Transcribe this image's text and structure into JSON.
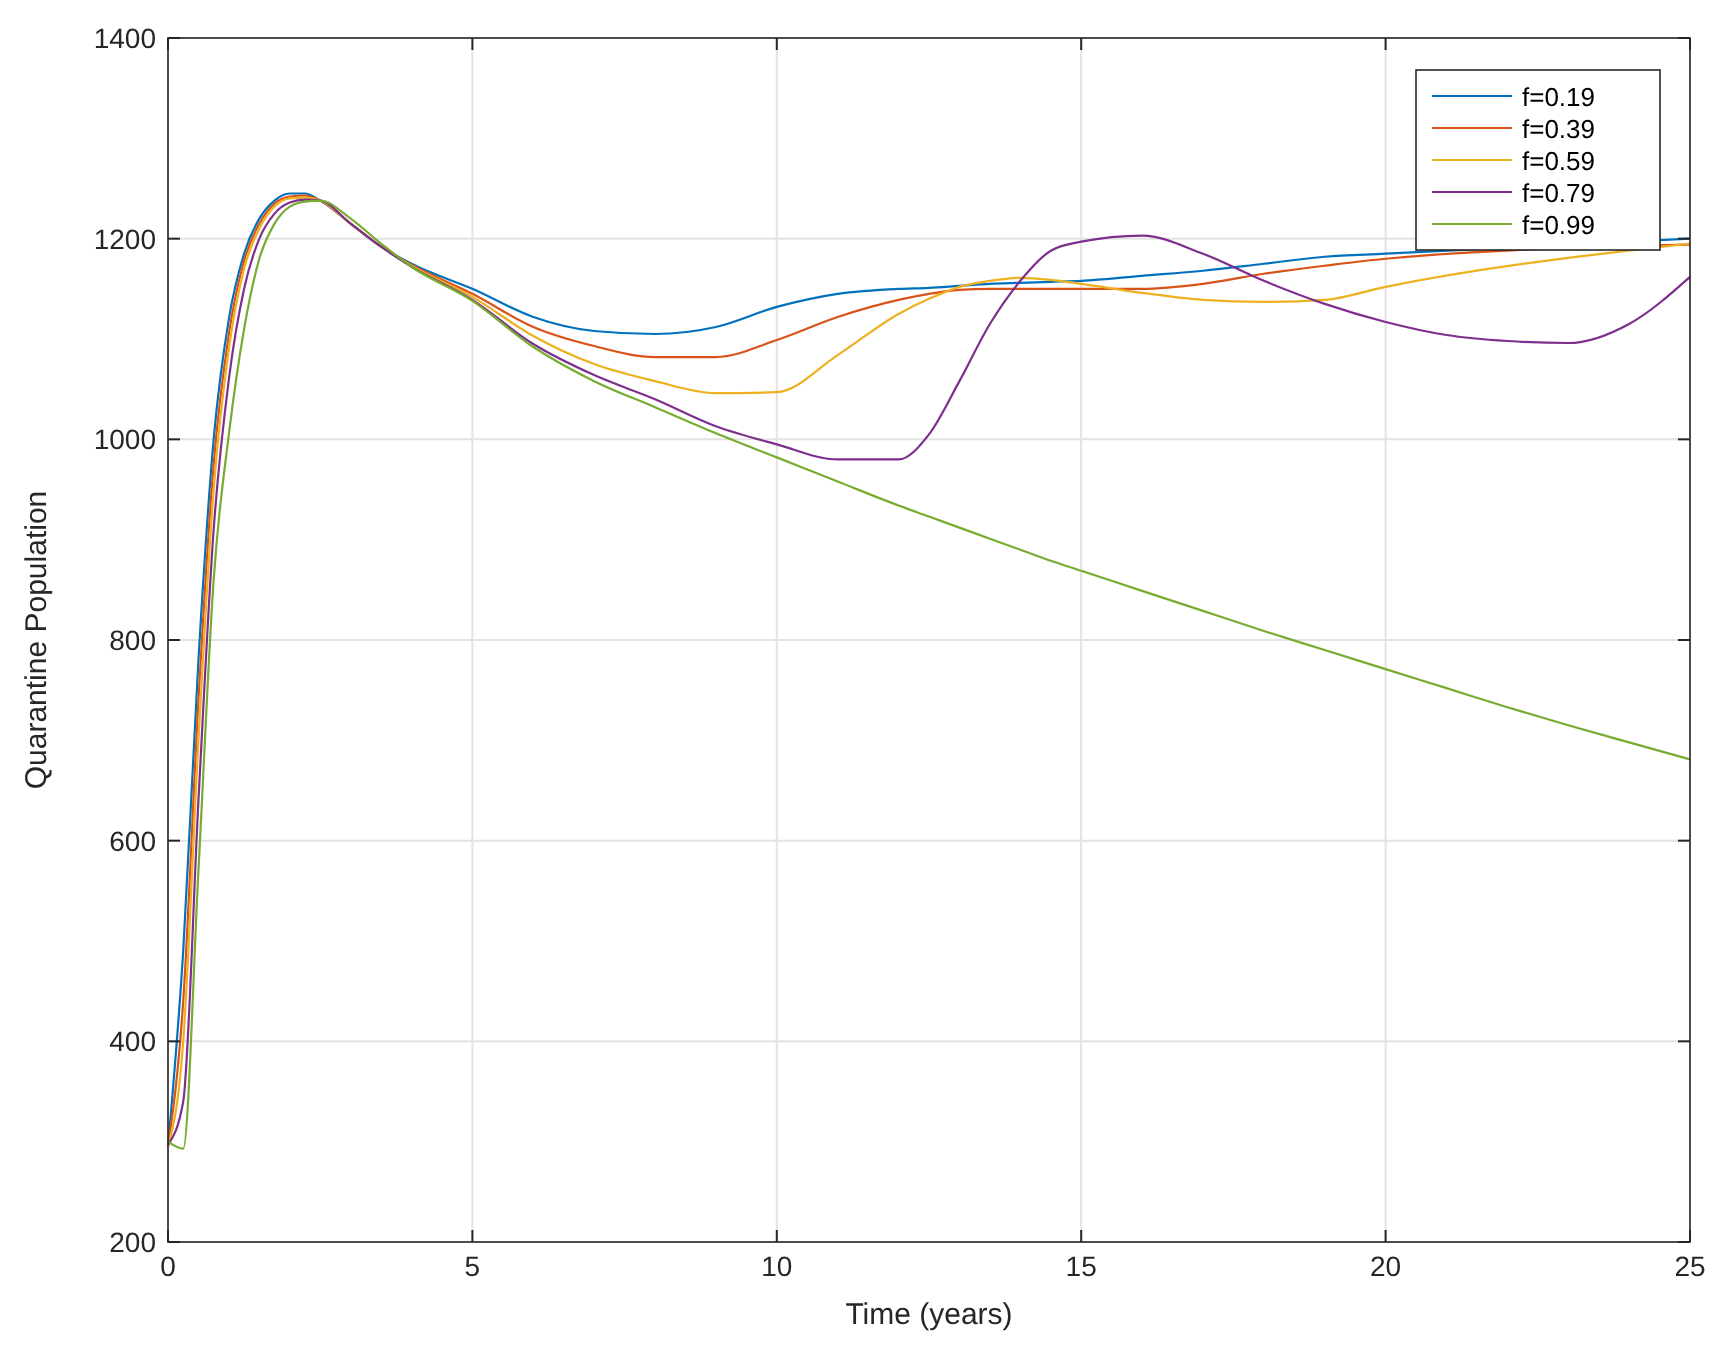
{
  "chart_data": {
    "type": "line",
    "xlabel": "Time (years)",
    "ylabel": "Quarantine Population",
    "x": [
      0,
      0.25,
      0.5,
      0.75,
      1,
      1.25,
      1.5,
      1.75,
      2,
      2.25,
      2.5,
      3,
      3.5,
      4,
      5,
      6,
      7,
      8,
      9,
      10,
      11,
      12,
      12.5,
      13,
      13.5,
      14,
      14.5,
      15,
      16,
      17,
      18,
      19,
      20,
      21,
      22,
      23,
      24,
      25
    ],
    "series": [
      {
        "name": "f=0.19",
        "color": "#0072bd",
        "x": [
          0,
          0.25,
          0.5,
          0.75,
          1,
          1.25,
          1.5,
          1.75,
          2,
          2.25,
          2.5,
          3,
          3.5,
          4,
          5,
          6,
          7,
          8,
          9,
          10,
          11,
          12,
          12.5,
          13,
          13.5,
          14,
          14.5,
          15,
          16,
          17,
          18,
          19,
          20,
          25
        ],
        "values": [
          295,
          490,
          780,
          1000,
          1120,
          1185,
          1220,
          1238,
          1245,
          1245,
          1238,
          1215,
          1192,
          1175,
          1150,
          1122,
          1108,
          1105,
          1112,
          1132,
          1145,
          1150,
          1151,
          1153,
          1155,
          1156,
          1157,
          1158,
          1163,
          1168,
          1175,
          1182,
          1185,
          1200
        ]
      },
      {
        "name": "f=0.39",
        "color": "#d95319",
        "x": [
          0,
          0.25,
          0.5,
          0.75,
          1,
          1.25,
          1.5,
          1.75,
          2,
          2.25,
          2.5,
          3,
          3.5,
          4,
          5,
          6,
          7,
          8,
          9,
          10,
          11,
          12,
          12.5,
          13,
          13.5,
          14,
          14.5,
          15,
          16,
          17,
          18,
          19,
          20,
          25
        ],
        "values": [
          295,
          440,
          740,
          975,
          1105,
          1178,
          1215,
          1235,
          1242,
          1243,
          1238,
          1215,
          1192,
          1174,
          1145,
          1112,
          1093,
          1082,
          1082,
          1099,
          1122,
          1139,
          1145,
          1149,
          1150,
          1150,
          1150,
          1150,
          1150,
          1155,
          1165,
          1173,
          1180,
          1194
        ]
      },
      {
        "name": "f=0.59",
        "color": "#edb120",
        "x": [
          0,
          0.25,
          0.5,
          0.75,
          1,
          1.25,
          1.5,
          1.75,
          2,
          2.25,
          2.5,
          3,
          3.5,
          4,
          5,
          6,
          7,
          8,
          9,
          10,
          11,
          12,
          12.5,
          13,
          13.5,
          14,
          14.5,
          15,
          16,
          17,
          18,
          19,
          20,
          25
        ],
        "values": [
          295,
          400,
          700,
          950,
          1090,
          1170,
          1210,
          1232,
          1240,
          1241,
          1238,
          1215,
          1192,
          1173,
          1142,
          1103,
          1075,
          1058,
          1046,
          1047,
          1084,
          1125,
          1140,
          1152,
          1158,
          1161,
          1159,
          1155,
          1146,
          1139,
          1137,
          1139,
          1152,
          1195
        ]
      },
      {
        "name": "f=0.79",
        "color": "#7e2f8e",
        "values": [
          297,
          340,
          640,
          910,
          1060,
          1150,
          1200,
          1225,
          1236,
          1239,
          1238,
          1215,
          1192,
          1172,
          1139,
          1095,
          1064,
          1040,
          1013,
          995,
          980,
          980,
          1005,
          1058,
          1115,
          1158,
          1188,
          1197,
          1203,
          1185,
          1158,
          1135,
          1117,
          1104,
          1098,
          1096,
          1115,
          1162
        ]
      },
      {
        "name": "f=0.99",
        "color": "#77ac30",
        "values": [
          300,
          293,
          570,
          860,
          1005,
          1110,
          1180,
          1215,
          1232,
          1237,
          1238,
          1220,
          1195,
          1172,
          1138,
          1092,
          1058,
          1032,
          1006,
          982,
          958,
          934,
          923,
          912,
          901,
          890,
          879,
          869,
          849,
          829,
          809,
          790,
          771,
          752,
          733,
          715,
          698,
          681
        ]
      }
    ],
    "xlim": [
      0,
      25
    ],
    "xticks": [
      0,
      5,
      10,
      15,
      20,
      25
    ],
    "ylim": [
      200,
      1400
    ],
    "yticks": [
      200,
      400,
      600,
      800,
      1000,
      1200,
      1400
    ],
    "grid": true,
    "legend": "top right",
    "line_style": "solid",
    "marker": "none"
  }
}
